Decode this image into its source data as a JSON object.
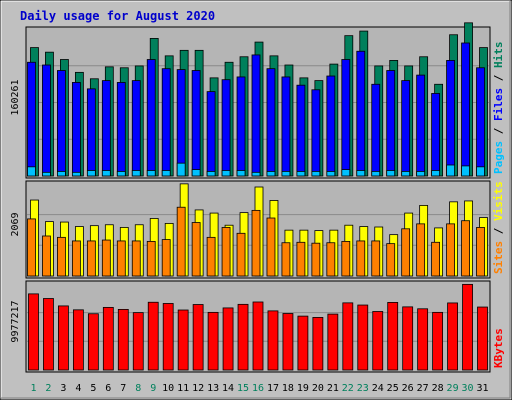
{
  "colors": {
    "background": "#c0c0c0",
    "plot_bg": "#b5b5b5",
    "hits": "#00805c",
    "files": "#0000ff",
    "pages": "#00c0ff",
    "visits": "#ffff00",
    "sites": "#ff8000",
    "kbytes": "#ff0000",
    "title": "#0000cc",
    "weekend_tick": "#00805c",
    "weekday_tick": "#000000"
  },
  "chart_data": {
    "type": "bar",
    "title": "Daily usage for August 2020",
    "categories": [
      "1",
      "2",
      "3",
      "4",
      "5",
      "6",
      "7",
      "8",
      "9",
      "10",
      "11",
      "12",
      "13",
      "14",
      "15",
      "16",
      "17",
      "18",
      "19",
      "20",
      "21",
      "22",
      "23",
      "24",
      "25",
      "26",
      "27",
      "28",
      "29",
      "30",
      "31"
    ],
    "weekend_days": [
      "1",
      "2",
      "8",
      "9",
      "15",
      "16",
      "22",
      "23",
      "29",
      "30"
    ],
    "panels": [
      {
        "ylabel": "160261",
        "ymax": 160261,
        "side_labels": [
          {
            "text": "Pages",
            "color": "#00c0ff"
          },
          {
            "text": " / ",
            "color": "#000000"
          },
          {
            "text": "Files",
            "color": "#0000ff"
          },
          {
            "text": " / ",
            "color": "#000000"
          },
          {
            "text": "Hits",
            "color": "#00805c"
          }
        ],
        "series": [
          {
            "name": "Hits",
            "color": "#00805c",
            "values": [
              140000,
              135000,
              127000,
              113000,
              106000,
              119000,
              118000,
              120000,
              150000,
              131000,
              137000,
              137000,
              107000,
              124000,
              130000,
              146000,
              131000,
              121000,
              107000,
              104000,
              122000,
              153000,
              158000,
              120000,
              126000,
              120000,
              130000,
              100000,
              154000,
              167000,
              140000
            ]
          },
          {
            "name": "Files",
            "color": "#0000ff",
            "values": [
              124000,
              121000,
              115000,
              102000,
              95000,
              104000,
              102000,
              104000,
              127000,
              117000,
              116000,
              115000,
              92000,
              105000,
              108000,
              132000,
              117000,
              108000,
              99000,
              94000,
              109000,
              127000,
              136000,
              100000,
              115000,
              104000,
              110000,
              90000,
              126000,
              145000,
              118000
            ]
          },
          {
            "name": "Pages",
            "color": "#00c0ff",
            "values": [
              10000,
              4000,
              5000,
              4000,
              6000,
              6000,
              5000,
              6000,
              6000,
              6000,
              14000,
              7000,
              5000,
              6000,
              6000,
              4000,
              5000,
              5000,
              5000,
              5000,
              5000,
              7000,
              6000,
              5000,
              6000,
              5000,
              5000,
              6000,
              12000,
              11000,
              10000
            ]
          }
        ]
      },
      {
        "ylabel": "2069",
        "ymax": 2069,
        "side_labels": [
          {
            "text": "Sites",
            "color": "#ff8000"
          },
          {
            "text": " / ",
            "color": "#000000"
          },
          {
            "text": "Visits",
            "color": "#ffff00"
          }
        ],
        "series": [
          {
            "name": "Visits",
            "color": "#ffff00",
            "values": [
              1690,
              1210,
              1200,
              1100,
              1120,
              1140,
              1080,
              1140,
              1280,
              1170,
              2050,
              1470,
              1400,
              1130,
              1410,
              1980,
              1680,
              1020,
              1020,
              1010,
              1020,
              1130,
              1100,
              1090,
              920,
              1400,
              1570,
              1070,
              1650,
              1670,
              1300
            ]
          },
          {
            "name": "Sites",
            "color": "#ff8000",
            "values": [
              1270,
              890,
              860,
              780,
              780,
              800,
              780,
              780,
              770,
              810,
              1530,
              1190,
              860,
              1080,
              950,
              1460,
              1290,
              740,
              750,
              730,
              740,
              770,
              780,
              780,
              720,
              1050,
              1160,
              750,
              1160,
              1230,
              1080
            ]
          }
        ]
      },
      {
        "ylabel": "9977217",
        "ymax": 9977217,
        "side_labels": [
          {
            "text": "KBytes",
            "color": "#ff0000"
          }
        ],
        "series": [
          {
            "name": "KBytes",
            "color": "#ff0000",
            "values": [
              8730000,
              8200000,
              7350000,
              6900000,
              6450000,
              7180000,
              6950000,
              6580000,
              7770000,
              7630000,
              6880000,
              7510000,
              6610000,
              7120000,
              7530000,
              7800000,
              6780000,
              6480000,
              6180000,
              6030000,
              6410000,
              7700000,
              7450000,
              6710000,
              7750000,
              7240000,
              7020000,
              6610000,
              7690000,
              9820000,
              7220000
            ]
          }
        ]
      }
    ]
  }
}
